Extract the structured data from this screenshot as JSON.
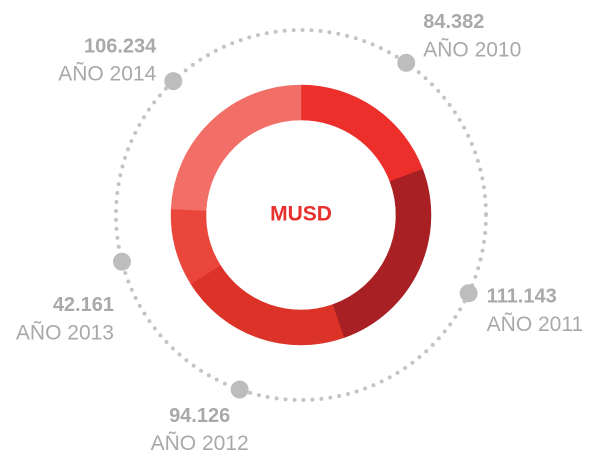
{
  "chart_data": {
    "type": "donut",
    "center_label": "MUSD",
    "categories": [
      "AÑO 2010",
      "AÑO 2011",
      "AÑO 2012",
      "AÑO 2013",
      "AÑO 2014"
    ],
    "values": [
      84.382,
      111.143,
      94.126,
      42.161,
      106.234
    ],
    "colors": [
      "#ec2f2b",
      "#a81f24",
      "#dc3329",
      "#ea463b",
      "#f26f68"
    ]
  }
}
